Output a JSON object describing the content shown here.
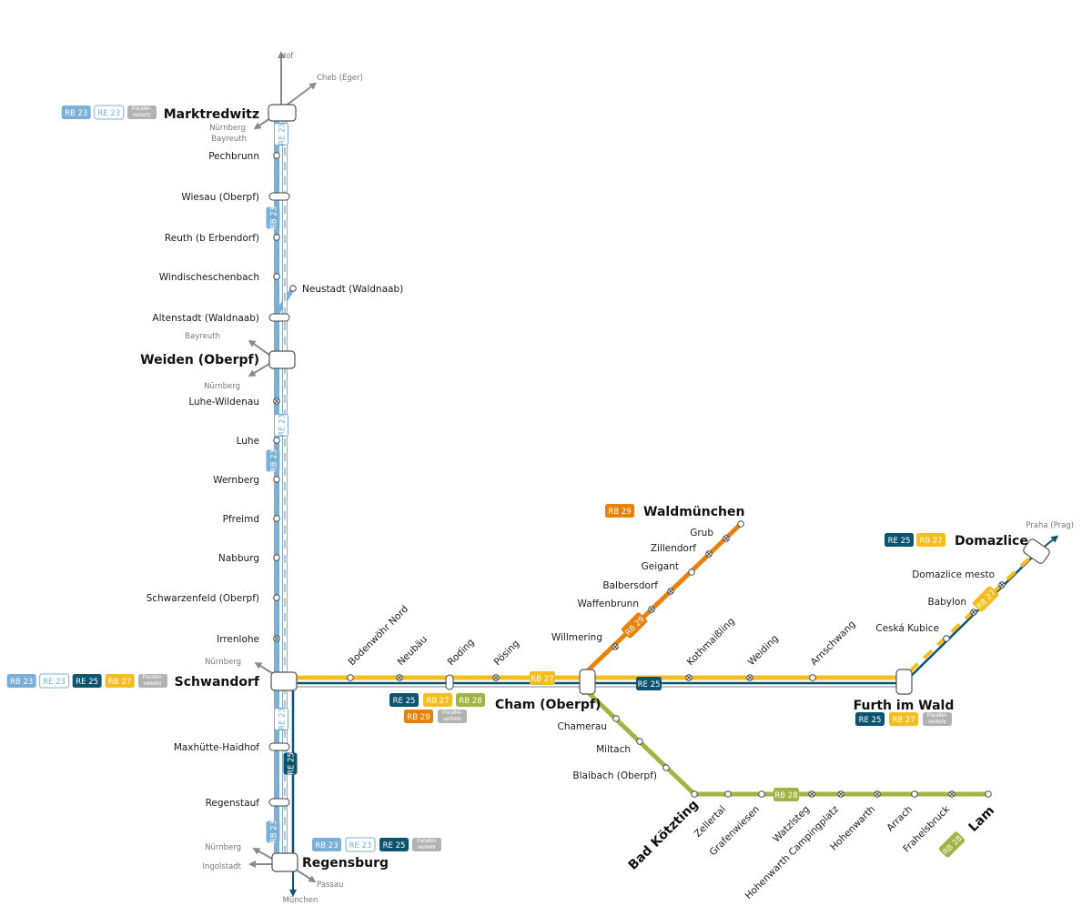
{
  "colors": {
    "RB23": "#7ab0d8",
    "RE23": "#7ab0d8",
    "RE25": "#0b5570",
    "RB27": "#f5bd1f",
    "RB28": "#a2b544",
    "RB29": "#e8820c",
    "parallel": "#b2b2b2",
    "connection": "#8a8a8a"
  },
  "badges": {
    "RB23": "RB 23",
    "RE23": "RE 23",
    "RE25": "RE 25",
    "RB27": "RB 27",
    "RB28": "RB 28",
    "RB29": "RB 29",
    "PV": "Parallel-verkehr"
  },
  "major_stations": {
    "marktredwitz": "Marktredwitz",
    "weiden": "Weiden (Oberpf)",
    "schwandorf": "Schwandorf",
    "regensburg": "Regensburg",
    "cham": "Cham (Oberpf)",
    "furth": "Furth im Wald",
    "domazlice": "Domazlice",
    "waldmuenchen": "Waldmünchen",
    "bad_koetzting": "Bad Kötzting",
    "lam": "Lam"
  },
  "stations_north_south": [
    "Pechbrunn",
    "Wiesau (Oberpf)",
    "Reuth (b Erbendorf)",
    "Windischeschenbach",
    "Altenstadt (Waldnaab)",
    "Luhe-Wildenau",
    "Luhe",
    "Wernberg",
    "Pfreimd",
    "Nabburg",
    "Schwarzenfeld (Oberpf)",
    "Irrenlohe",
    "Maxhütte-Haidhof",
    "Regenstauf"
  ],
  "branch_neustadt": "Neustadt (Waldnaab)",
  "stations_schwandorf_furth": [
    "Bodenwöhr Nord",
    "Neubäu",
    "Roding",
    "Pösing",
    "Kothmaißling",
    "Weiding",
    "Arnschwang"
  ],
  "stations_rb29": [
    "Willmering",
    "Waffenbrunn",
    "Balbersdorf",
    "Geigant",
    "Zillendorf",
    "Grub"
  ],
  "stations_rb28_diag": [
    "Chamerau",
    "Miltach",
    "Blaibach (Oberpf)"
  ],
  "stations_rb28_east": [
    "Zellertal",
    "Grafenwiesen",
    "Watzlsteg",
    "Hohenwarth Campingplatz",
    "Hohenwarth",
    "Arrach",
    "Frahelsbruck"
  ],
  "stations_czech": [
    "Ceská Kubice",
    "Babylon",
    "Domazlice mesto"
  ],
  "connections": {
    "hof": "Hof",
    "cheb": "Cheb (Eger)",
    "nuernberg": "Nürnberg",
    "bayreuth": "Bayreuth",
    "ingolstadt": "Ingolstadt",
    "passau": "Passau",
    "muenchen": "München",
    "praha": "Praha (Prag)"
  }
}
